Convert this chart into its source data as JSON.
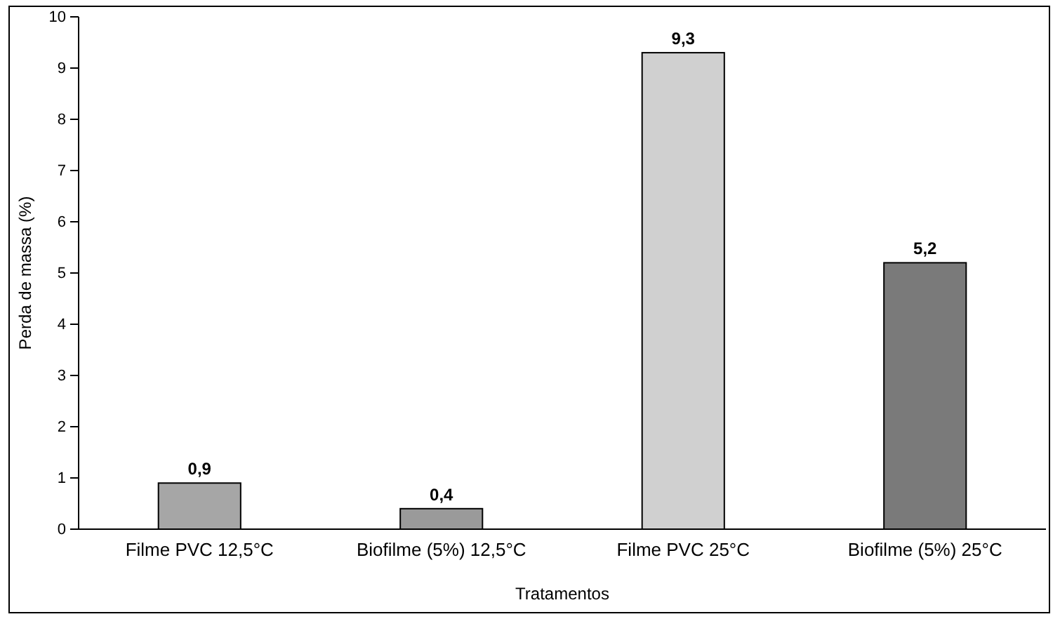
{
  "chart_data": {
    "type": "bar",
    "xlabel": "Tratamentos",
    "ylabel": "Perda de massa (%)",
    "categories": [
      "Filme PVC 12,5°C",
      "Biofilme (5%) 12,5°C",
      "Filme PVC 25°C",
      "Biofilme (5%) 25°C"
    ],
    "values": [
      0.9,
      0.4,
      9.3,
      5.2
    ],
    "colors": [
      "#a6a6a6",
      "#9a9a9a",
      "#d0d0d0",
      "#7a7a7a"
    ],
    "ylim": [
      0,
      10
    ],
    "yticks": [
      0,
      1,
      2,
      3,
      4,
      5,
      6,
      7,
      8,
      9,
      10
    ],
    "value_labels": [
      "0,9",
      "0,4",
      "9,3",
      "5,2"
    ]
  }
}
